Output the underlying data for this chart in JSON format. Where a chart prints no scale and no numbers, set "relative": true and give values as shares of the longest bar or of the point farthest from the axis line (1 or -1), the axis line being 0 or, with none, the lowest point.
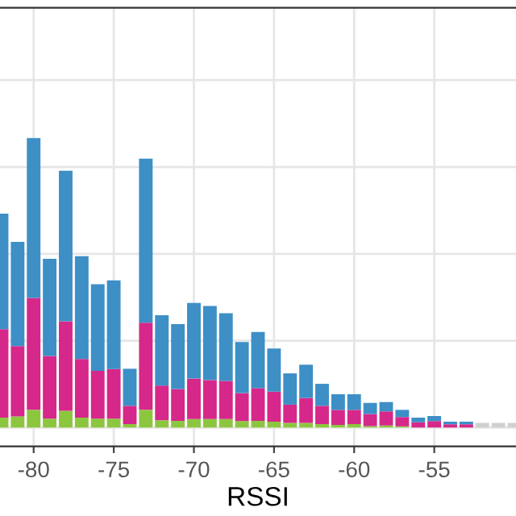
{
  "chart_data": {
    "type": "bar",
    "stacked": true,
    "relative": true,
    "xlabel": "RSSI",
    "x": [
      -82,
      -81,
      -80,
      -79,
      -78,
      -77,
      -76,
      -75,
      -74,
      -73,
      -72,
      -71,
      -70,
      -69,
      -68,
      -67,
      -66,
      -65,
      -64,
      -63,
      -62,
      -61,
      -60,
      -59,
      -58,
      -57,
      -56,
      -55,
      -54,
      -53,
      -52,
      -51,
      -50
    ],
    "xlim": [
      -82.1,
      -49.9
    ],
    "xticks": [
      -80,
      -75,
      -70,
      -65,
      -60,
      -55
    ],
    "grid": true,
    "legend": false,
    "series": [
      {
        "color": "#8cc63f",
        "values": [
          0.034,
          0.038,
          0.061,
          0.031,
          0.058,
          0.034,
          0.031,
          0.031,
          0.012,
          0.061,
          0.025,
          0.023,
          0.029,
          0.029,
          0.029,
          0.022,
          0.023,
          0.02,
          0.016,
          0.016,
          0.012,
          0.009,
          0.012,
          0.005,
          0.007,
          0.004,
          null,
          null,
          null,
          null,
          0,
          0,
          0
        ]
      },
      {
        "color": "#d6278a",
        "values": [
          0.306,
          0.243,
          0.387,
          0.216,
          0.309,
          0.203,
          0.165,
          0.171,
          0.063,
          0.301,
          0.12,
          0.11,
          0.14,
          0.135,
          0.132,
          0.097,
          0.113,
          0.104,
          0.063,
          0.086,
          0.063,
          0.052,
          0.049,
          0.042,
          0.049,
          0.032,
          0.018,
          0.022,
          0.011,
          0.011,
          0,
          0,
          0
        ]
      },
      {
        "color": "#3d8fc6",
        "values": [
          0.399,
          0.36,
          0.552,
          0.336,
          0.52,
          0.355,
          0.299,
          0.306,
          0.128,
          0.567,
          0.243,
          0.224,
          0.261,
          0.256,
          0.234,
          0.176,
          0.194,
          0.149,
          0.108,
          0.115,
          0.076,
          0.054,
          0.054,
          0.038,
          0.032,
          0.025,
          0.016,
          0.018,
          0.009,
          0.009,
          0,
          0,
          0
        ]
      },
      {
        "color": "#d0d0d0",
        "values": [
          0,
          0,
          0,
          0,
          0,
          0,
          0,
          0,
          0,
          0,
          0,
          0,
          0,
          0,
          0,
          0,
          0,
          0,
          0,
          0,
          0,
          0,
          0,
          0,
          0,
          0,
          0,
          0,
          0,
          0,
          0.016,
          0.016,
          0.016
        ]
      }
    ]
  }
}
